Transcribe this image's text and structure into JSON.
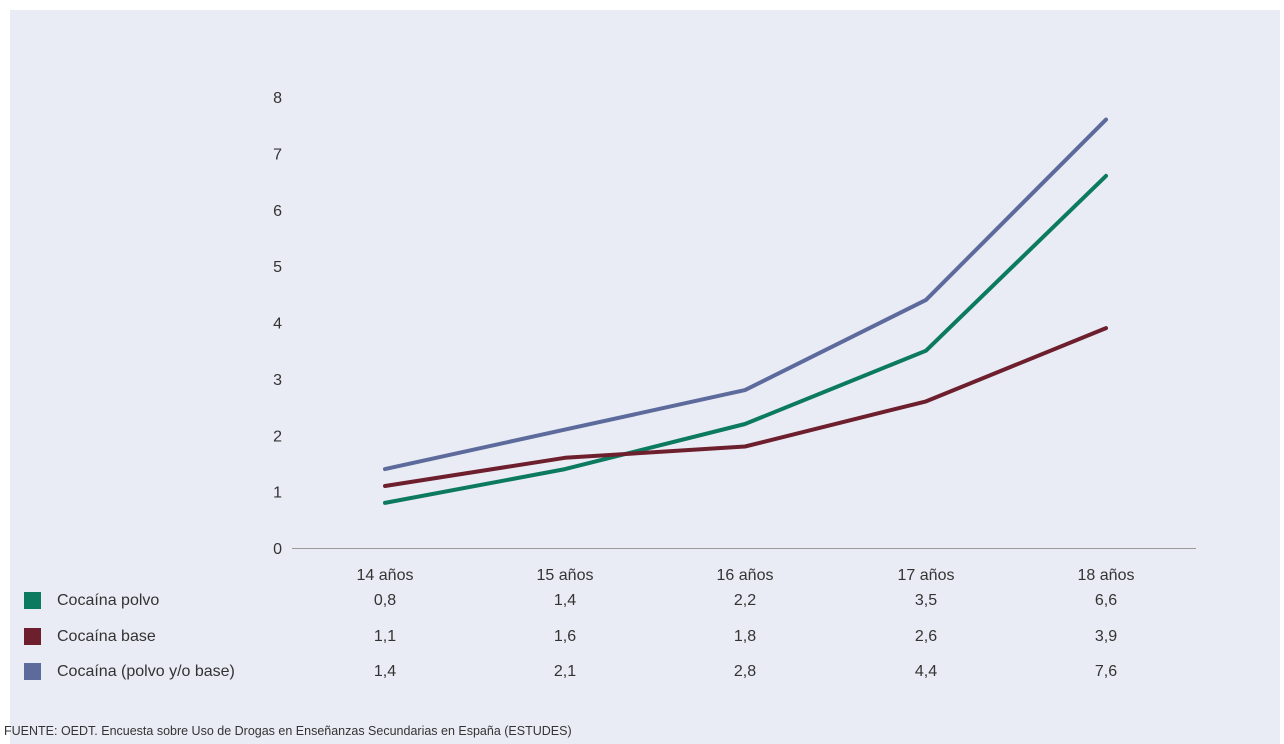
{
  "chart_data": {
    "type": "line",
    "categories": [
      "14 años",
      "15 años",
      "16 años",
      "17 años",
      "18 años"
    ],
    "ylim": [
      0,
      8
    ],
    "yticks": [
      "0",
      "1",
      "2",
      "3",
      "4",
      "5",
      "6",
      "7",
      "8"
    ],
    "grid": false,
    "legend": "bottom-left table",
    "series": [
      {
        "name": "Cocaína polvo",
        "color": "#0b7a5e",
        "values": [
          0.8,
          1.4,
          2.2,
          3.5,
          6.6
        ],
        "labels": [
          "0,8",
          "1,4",
          "2,2",
          "3,5",
          "6,6"
        ]
      },
      {
        "name": "Cocaína base",
        "color": "#6e1f2e",
        "values": [
          1.1,
          1.6,
          1.8,
          2.6,
          3.9
        ],
        "labels": [
          "1,1",
          "1,6",
          "1,8",
          "2,6",
          "3,9"
        ]
      },
      {
        "name": "Cocaína (polvo y/o base)",
        "color": "#5c6a9c",
        "values": [
          1.4,
          2.1,
          2.8,
          4.4,
          7.6
        ],
        "labels": [
          "1,4",
          "2,1",
          "2,8",
          "4,4",
          "7,6"
        ]
      }
    ]
  },
  "source": "FUENTE: OEDT. Encuesta sobre Uso de Drogas en Enseñanzas Secundarias en España (ESTUDES)"
}
